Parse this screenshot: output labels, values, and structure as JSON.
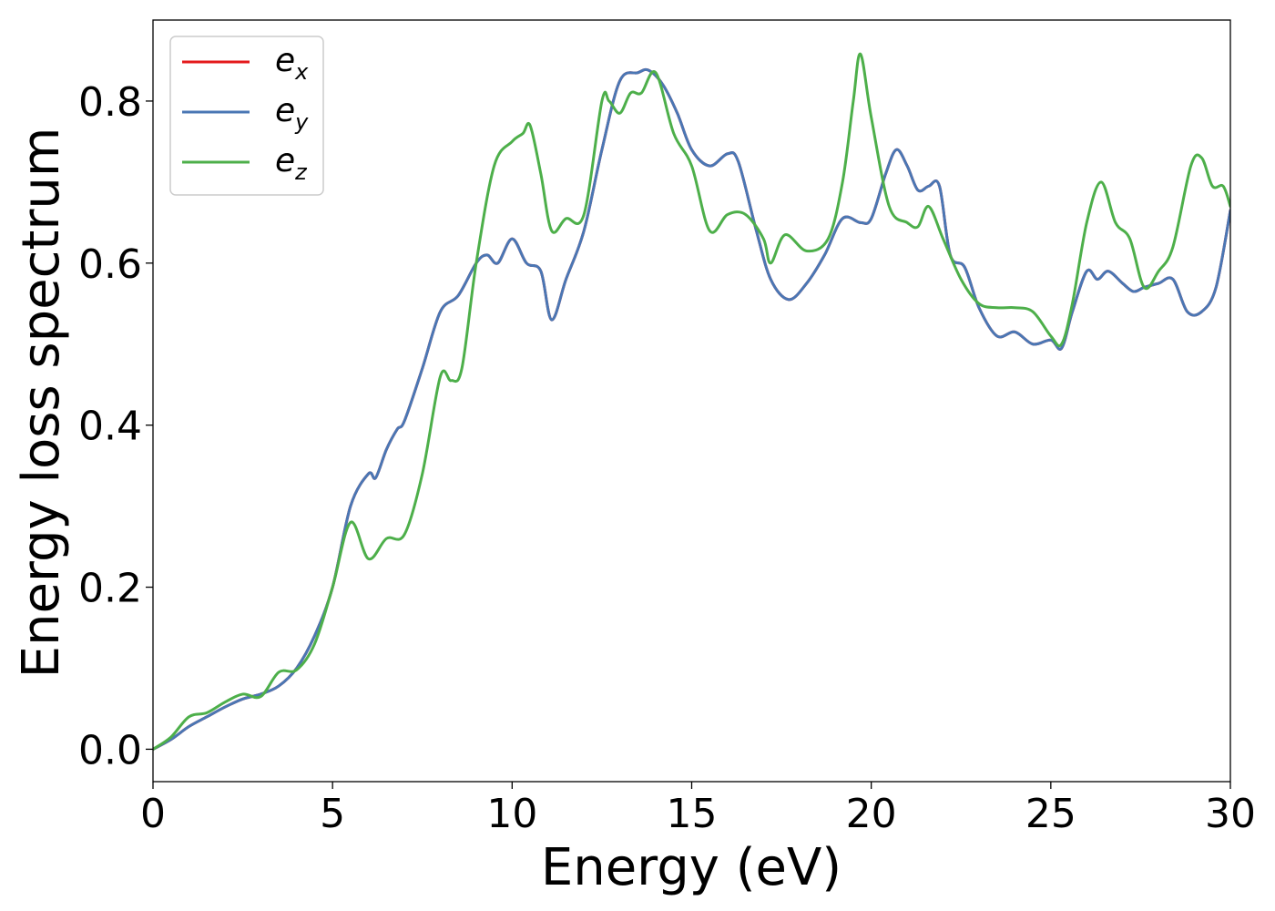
{
  "chart_data": {
    "type": "line",
    "title": "",
    "xlabel": "Energy (eV)",
    "ylabel": "Energy loss spectrum",
    "xlim": [
      0,
      30
    ],
    "ylim": [
      -0.04,
      0.9
    ],
    "xticks": [
      0,
      5,
      10,
      15,
      20,
      25,
      30
    ],
    "xtick_labels": [
      "0",
      "5",
      "10",
      "15",
      "20",
      "25",
      "30"
    ],
    "yticks": [
      0.0,
      0.2,
      0.4,
      0.6,
      0.8
    ],
    "ytick_labels": [
      "0.0",
      "0.2",
      "0.4",
      "0.6",
      "0.8"
    ],
    "grid": false,
    "legend_position": "top-left",
    "series": [
      {
        "name": "e_x",
        "legend_base": "e",
        "legend_sub": "x",
        "color": "#e41a1c",
        "x": [
          0,
          0.5,
          1,
          1.5,
          2,
          2.5,
          3,
          3.5,
          4,
          4.5,
          5,
          5.5,
          6,
          6.2,
          6.5,
          6.8,
          7,
          7.5,
          8,
          8.5,
          9,
          9.3,
          9.6,
          10,
          10.4,
          10.8,
          11.1,
          11.5,
          12,
          12.5,
          13,
          13.5,
          13.8,
          14.2,
          14.6,
          15,
          15.5,
          16,
          16.3,
          16.8,
          17.2,
          17.7,
          18.2,
          18.7,
          19.2,
          19.7,
          20,
          20.4,
          20.7,
          21,
          21.3,
          21.6,
          21.9,
          22.2,
          22.6,
          23,
          23.5,
          24,
          24.5,
          25,
          25.3,
          25.6,
          26,
          26.3,
          26.6,
          27,
          27.3,
          27.6,
          28,
          28.4,
          28.8,
          29.2,
          29.6,
          30
        ],
        "y": [
          0.0,
          0.012,
          0.028,
          0.04,
          0.052,
          0.062,
          0.068,
          0.078,
          0.1,
          0.14,
          0.2,
          0.3,
          0.34,
          0.335,
          0.37,
          0.395,
          0.405,
          0.47,
          0.54,
          0.56,
          0.6,
          0.61,
          0.6,
          0.63,
          0.6,
          0.59,
          0.53,
          0.58,
          0.64,
          0.74,
          0.825,
          0.835,
          0.838,
          0.82,
          0.785,
          0.74,
          0.72,
          0.735,
          0.725,
          0.64,
          0.58,
          0.555,
          0.575,
          0.61,
          0.655,
          0.65,
          0.655,
          0.71,
          0.74,
          0.72,
          0.69,
          0.695,
          0.695,
          0.61,
          0.595,
          0.545,
          0.51,
          0.515,
          0.5,
          0.505,
          0.495,
          0.54,
          0.59,
          0.58,
          0.59,
          0.575,
          0.565,
          0.57,
          0.575,
          0.58,
          0.54,
          0.54,
          0.57,
          0.665
        ]
      },
      {
        "name": "e_y",
        "legend_base": "e",
        "legend_sub": "y",
        "color": "#4a77b4",
        "x": [
          0,
          0.5,
          1,
          1.5,
          2,
          2.5,
          3,
          3.5,
          4,
          4.5,
          5,
          5.5,
          6,
          6.2,
          6.5,
          6.8,
          7,
          7.5,
          8,
          8.5,
          9,
          9.3,
          9.6,
          10,
          10.4,
          10.8,
          11.1,
          11.5,
          12,
          12.5,
          13,
          13.5,
          13.8,
          14.2,
          14.6,
          15,
          15.5,
          16,
          16.3,
          16.8,
          17.2,
          17.7,
          18.2,
          18.7,
          19.2,
          19.7,
          20,
          20.4,
          20.7,
          21,
          21.3,
          21.6,
          21.9,
          22.2,
          22.6,
          23,
          23.5,
          24,
          24.5,
          25,
          25.3,
          25.6,
          26,
          26.3,
          26.6,
          27,
          27.3,
          27.6,
          28,
          28.4,
          28.8,
          29.2,
          29.6,
          30
        ],
        "y": [
          0.0,
          0.012,
          0.028,
          0.04,
          0.052,
          0.062,
          0.068,
          0.078,
          0.1,
          0.14,
          0.2,
          0.3,
          0.34,
          0.335,
          0.37,
          0.395,
          0.405,
          0.47,
          0.54,
          0.56,
          0.6,
          0.61,
          0.6,
          0.63,
          0.6,
          0.59,
          0.53,
          0.58,
          0.64,
          0.74,
          0.825,
          0.835,
          0.838,
          0.82,
          0.785,
          0.74,
          0.72,
          0.735,
          0.725,
          0.64,
          0.58,
          0.555,
          0.575,
          0.61,
          0.655,
          0.65,
          0.655,
          0.71,
          0.74,
          0.72,
          0.69,
          0.695,
          0.695,
          0.61,
          0.595,
          0.545,
          0.51,
          0.515,
          0.5,
          0.505,
          0.495,
          0.54,
          0.59,
          0.58,
          0.59,
          0.575,
          0.565,
          0.57,
          0.575,
          0.58,
          0.54,
          0.54,
          0.57,
          0.665
        ]
      },
      {
        "name": "e_z",
        "legend_base": "e",
        "legend_sub": "z",
        "color": "#4daf4a",
        "x": [
          0,
          0.5,
          1,
          1.5,
          2,
          2.5,
          3,
          3.5,
          4,
          4.5,
          5,
          5.5,
          6,
          6.5,
          7,
          7.5,
          8,
          8.3,
          8.6,
          9,
          9.5,
          10,
          10.3,
          10.5,
          10.8,
          11.1,
          11.5,
          12,
          12.5,
          12.7,
          13,
          13.3,
          13.6,
          14,
          14.5,
          15,
          15.5,
          16,
          16.5,
          17,
          17.2,
          17.6,
          18.2,
          18.8,
          19.2,
          19.5,
          19.7,
          20,
          20.5,
          21,
          21.3,
          21.6,
          22,
          22.5,
          23,
          23.5,
          24,
          24.5,
          25,
          25.3,
          25.6,
          26,
          26.4,
          26.8,
          27.2,
          27.6,
          28,
          28.4,
          28.9,
          29.2,
          29.5,
          29.8,
          30
        ],
        "y": [
          0.0,
          0.015,
          0.04,
          0.045,
          0.058,
          0.068,
          0.065,
          0.095,
          0.098,
          0.13,
          0.2,
          0.28,
          0.235,
          0.26,
          0.265,
          0.34,
          0.46,
          0.455,
          0.47,
          0.6,
          0.72,
          0.75,
          0.76,
          0.77,
          0.71,
          0.64,
          0.655,
          0.66,
          0.8,
          0.8,
          0.785,
          0.81,
          0.81,
          0.835,
          0.76,
          0.72,
          0.64,
          0.66,
          0.66,
          0.63,
          0.6,
          0.635,
          0.615,
          0.63,
          0.7,
          0.8,
          0.858,
          0.78,
          0.67,
          0.65,
          0.645,
          0.67,
          0.63,
          0.58,
          0.55,
          0.545,
          0.545,
          0.54,
          0.51,
          0.5,
          0.55,
          0.65,
          0.7,
          0.65,
          0.63,
          0.57,
          0.59,
          0.62,
          0.72,
          0.73,
          0.695,
          0.695,
          0.67
        ]
      }
    ]
  }
}
